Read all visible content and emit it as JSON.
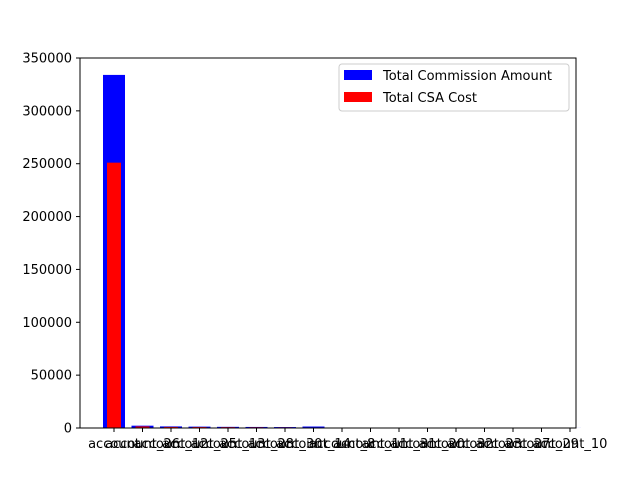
{
  "chart_data": {
    "type": "bar",
    "title": "",
    "xlabel": "",
    "ylabel": "",
    "ylim": [
      0,
      350000
    ],
    "yticks": [
      0,
      50000,
      100000,
      150000,
      200000,
      250000,
      300000,
      350000
    ],
    "categories": [
      "account",
      "account_26",
      "account_12",
      "account_25",
      "account_13",
      "account_28",
      "account_30",
      "account_14",
      "account_8",
      "account_11",
      "account_31",
      "account_20",
      "account_32",
      "account_23",
      "account_27",
      "account_29",
      "account_10"
    ],
    "series": [
      {
        "name": "Total Commission Amount",
        "color": "#0000ff",
        "values": [
          334000,
          2200,
          1500,
          1300,
          1100,
          1000,
          900,
          1400,
          200,
          150,
          120,
          100,
          90,
          80,
          70,
          60,
          50
        ]
      },
      {
        "name": "Total CSA Cost",
        "color": "#ff0000",
        "values": [
          251000,
          1500,
          1000,
          900,
          800,
          700,
          600,
          300,
          100,
          80,
          70,
          60,
          50,
          40,
          30,
          20,
          10
        ]
      }
    ],
    "legend_position": "top-right",
    "grid": false
  }
}
